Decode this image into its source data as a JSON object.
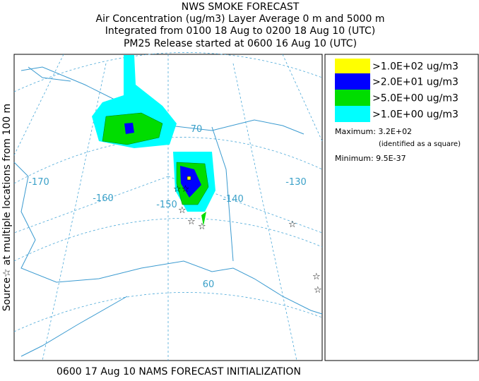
{
  "header": {
    "title": "NWS SMOKE FORECAST",
    "lines": [
      "Air Concentration (ug/m3) Layer Average    0 m and  5000 m",
      "Integrated from 0100 18 Aug to 0200 18 Aug 10 (UTC)",
      "PM25 Release started at 0600 16 Aug 10 (UTC)"
    ]
  },
  "side_label": "Source☆ at multiple locations  from  100 m",
  "footer": "0600 17 Aug 10 NAMS FORECAST INITIALIZATION",
  "map": {
    "graticule_labels": [
      "-170",
      "-160",
      "-150",
      "-140",
      "-130",
      "70",
      "60"
    ]
  },
  "legend": {
    "entries": [
      {
        "label": ">1.0E+02 ug/m3",
        "color": "#ffff00"
      },
      {
        "label": ">2.0E+01 ug/m3",
        "color": "#0000ff"
      },
      {
        "label": ">5.0E+00 ug/m3",
        "color": "#00dd00"
      },
      {
        "label": ">1.0E+00 ug/m3",
        "color": "#00ffff"
      }
    ],
    "maximum": "Maximum: 3.2E+02",
    "maximum_note": "(identified as a square)",
    "minimum": "Minimum: 9.5E-37"
  }
}
